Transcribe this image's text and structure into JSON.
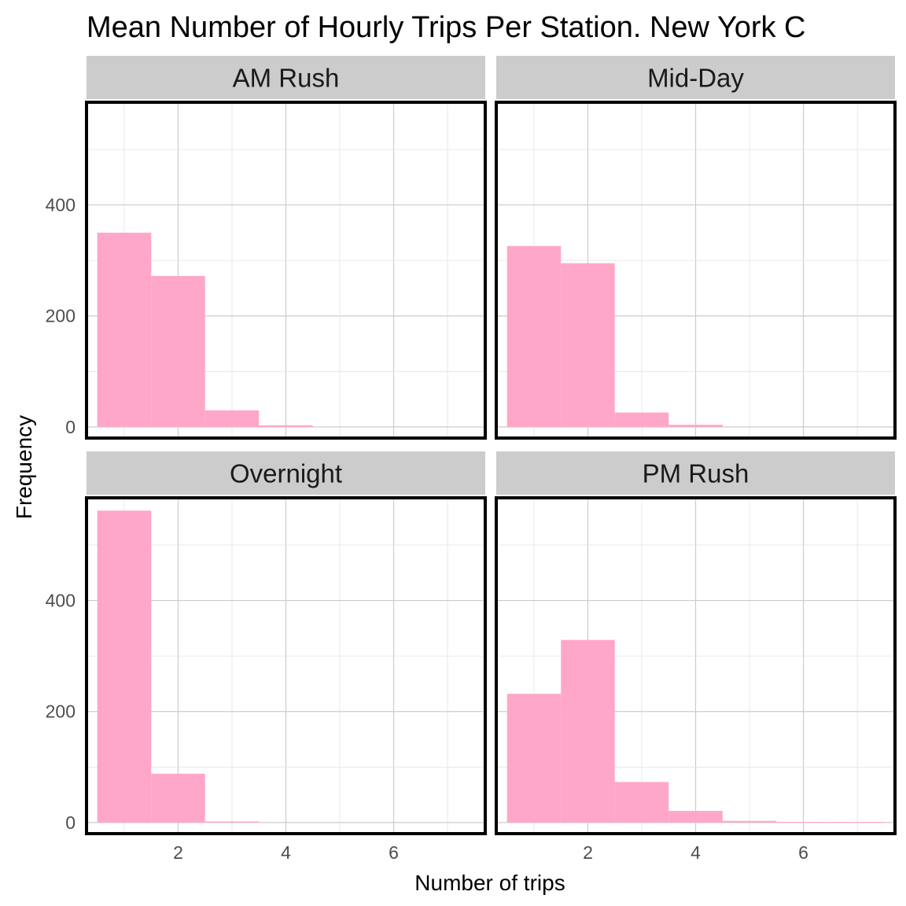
{
  "chart_data": {
    "type": "bar",
    "title": "Mean Number of Hourly Trips Per Station. New York C",
    "xlabel": "Number of trips",
    "ylabel": "Frequency",
    "xlim": [
      0.3,
      7.7
    ],
    "ylim": [
      -20,
      585
    ],
    "x_ticks": [
      2,
      4,
      6
    ],
    "y_ticks": [
      0,
      200,
      400
    ],
    "grid": true,
    "bar_color": "#ffa7c8",
    "strip_color": "#cccccc",
    "panel_border_color": "#000000",
    "bin_width": 1,
    "bin_centers": [
      1,
      2,
      3,
      4,
      5,
      6,
      7
    ],
    "panels": [
      {
        "name": "AM Rush",
        "values": [
          350,
          272,
          30,
          3,
          0,
          0,
          0
        ]
      },
      {
        "name": "Mid-Day",
        "values": [
          326,
          295,
          26,
          4,
          0,
          0,
          0
        ]
      },
      {
        "name": "Overnight",
        "values": [
          562,
          88,
          2,
          0,
          0,
          0,
          0
        ]
      },
      {
        "name": "PM Rush",
        "values": [
          232,
          329,
          73,
          21,
          3,
          1,
          1
        ]
      }
    ]
  }
}
